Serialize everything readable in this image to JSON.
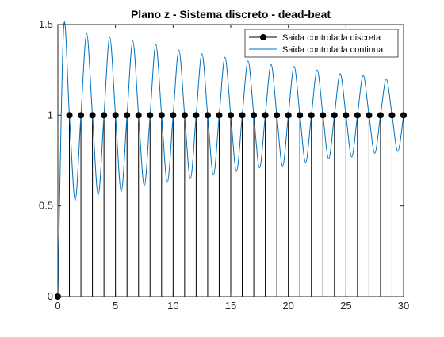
{
  "chart_data": {
    "type": "line",
    "title": "Plano z - Sistema discreto - dead-beat",
    "xlabel": "",
    "ylabel": "",
    "xlim": [
      0,
      30
    ],
    "ylim": [
      0,
      1.5
    ],
    "xticks": [
      0,
      5,
      10,
      15,
      20,
      25,
      30
    ],
    "yticks": [
      0,
      0.5,
      1,
      1.5
    ],
    "xtick_labels": [
      "0",
      "5",
      "10",
      "15",
      "20",
      "25",
      "30"
    ],
    "ytick_labels": [
      "0",
      "0.5",
      "1",
      "1.5"
    ],
    "grid": false,
    "legend_position": "top-right",
    "series": [
      {
        "name": "Saida controlada discreta",
        "style": "stem",
        "color": "#000000",
        "x": [
          0,
          1,
          2,
          3,
          4,
          5,
          6,
          7,
          8,
          9,
          10,
          11,
          12,
          13,
          14,
          15,
          16,
          17,
          18,
          19,
          20,
          21,
          22,
          23,
          24,
          25,
          26,
          27,
          28,
          29,
          30
        ],
        "y": [
          0,
          1,
          1,
          1,
          1,
          1,
          1,
          1,
          1,
          1,
          1,
          1,
          1,
          1,
          1,
          1,
          1,
          1,
          1,
          1,
          1,
          1,
          1,
          1,
          1,
          1,
          1,
          1,
          1,
          1,
          1
        ]
      },
      {
        "name": "Saida controlada continua",
        "style": "line",
        "color": "#0072BD",
        "x": [
          0,
          0.5,
          1,
          1.5,
          2,
          2.5,
          3,
          3.5,
          4,
          4.5,
          5,
          5.5,
          6,
          6.5,
          7,
          7.5,
          8,
          8.5,
          9,
          9.5,
          10,
          10.5,
          11,
          11.5,
          12,
          12.5,
          13,
          13.5,
          14,
          14.5,
          15,
          15.5,
          16,
          16.5,
          17,
          17.5,
          18,
          18.5,
          19,
          19.5,
          20,
          20.5,
          21,
          21.5,
          22,
          22.5,
          23,
          23.5,
          24,
          24.5,
          25,
          25.5,
          26,
          26.5,
          27,
          27.5,
          28,
          28.5,
          29,
          29.5,
          30
        ],
        "y": [
          0,
          1.48,
          1,
          0.53,
          1,
          1.45,
          1,
          0.56,
          1,
          1.43,
          1,
          0.58,
          1,
          1.41,
          1,
          0.61,
          1,
          1.39,
          1,
          0.63,
          1,
          1.36,
          1,
          0.65,
          1,
          1.34,
          1,
          0.67,
          1,
          1.32,
          1,
          0.69,
          1,
          1.3,
          1,
          0.71,
          1,
          1.28,
          1,
          0.72,
          1,
          1.27,
          1,
          0.74,
          1,
          1.25,
          1,
          0.76,
          1,
          1.23,
          1,
          0.77,
          1,
          1.22,
          1,
          0.79,
          1,
          1.2,
          1,
          0.8,
          1
        ]
      }
    ]
  }
}
